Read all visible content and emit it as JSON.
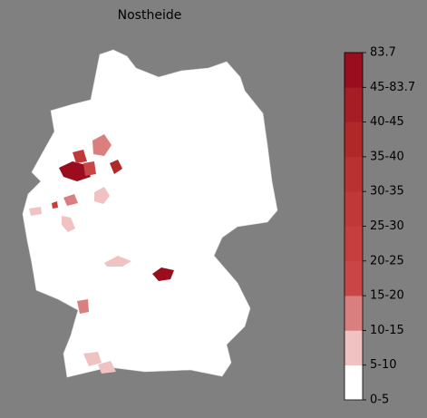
{
  "title": "Nostheide",
  "colorbar": {
    "labels": [
      "0-5",
      "5-10",
      "10-15",
      "15-20",
      "20-25",
      "25-30",
      "30-35",
      "35-40",
      "40-45",
      "45-83.7",
      "83.7"
    ],
    "colors": [
      "#ffffff",
      "#f0c2c2",
      "#da7f7f",
      "#ca4646",
      "#c53f3f",
      "#c03939",
      "#b93131",
      "#b02828",
      "#a61d26",
      "#9a0d1f"
    ]
  }
}
